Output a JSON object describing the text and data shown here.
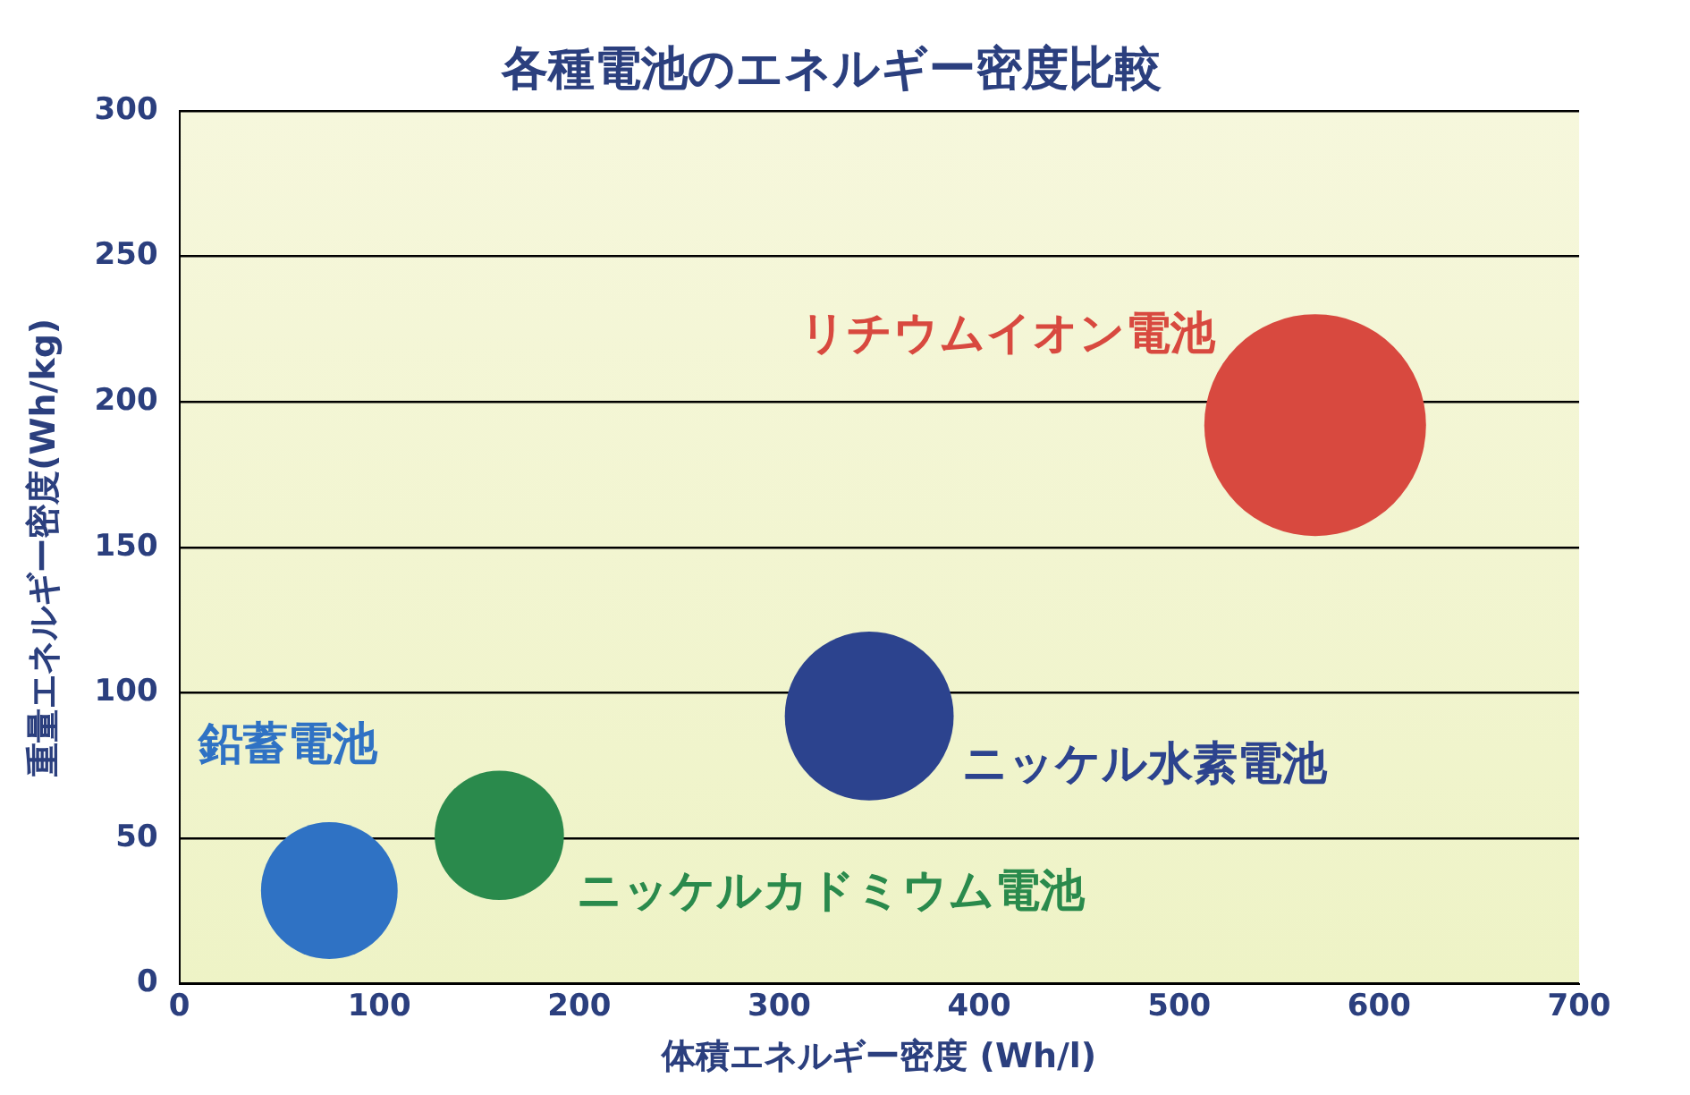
{
  "chart_data": {
    "type": "bubble",
    "title": "各種電池のエネルギー密度比較",
    "xlabel": "体積エネルギー密度 (Wh/l)",
    "ylabel": "重量エネルギー密度(Wh/kg)",
    "xlim": [
      0,
      700
    ],
    "xticks": [
      0,
      100,
      200,
      300,
      400,
      500,
      600,
      700
    ],
    "ylim": [
      0,
      300
    ],
    "yticks": [
      0,
      50,
      100,
      150,
      200,
      250,
      300
    ],
    "grid": "y",
    "series": [
      {
        "name": "鉛蓄電池",
        "color": "#2f72c4",
        "x": [
          75
        ],
        "values": [
          32
        ],
        "sizes": [
          0.38
        ]
      },
      {
        "name": "ニッケルカドミウム電池",
        "color": "#2a8a4c",
        "x": [
          160
        ],
        "values": [
          51
        ],
        "sizes": [
          0.34
        ]
      },
      {
        "name": "ニッケル水素電池",
        "color": "#2c438e",
        "x": [
          345
        ],
        "values": [
          92
        ],
        "sizes": [
          0.58
        ]
      },
      {
        "name": "リチウムイオン電池",
        "color": "#d8493f",
        "x": [
          568
        ],
        "values": [
          192
        ],
        "sizes": [
          1
        ]
      }
    ]
  }
}
